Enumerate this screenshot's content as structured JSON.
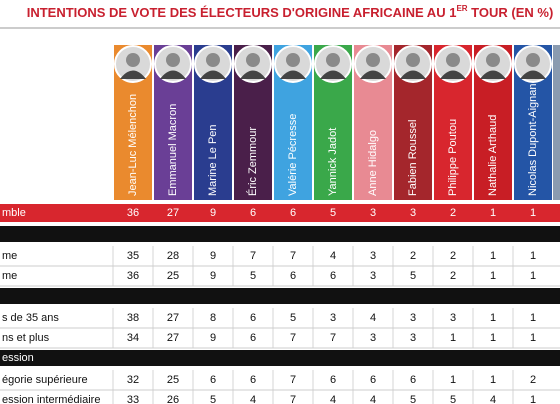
{
  "header": {
    "title_main": "INTENTIONS DE VOTE DES ÉLECTEURS D'ORIGINE AFRICAINE AU 1",
    "title_sup": "ER",
    "title_end": " TOUR (EN %)"
  },
  "candidates": [
    {
      "name": "Jean-Luc Mélenchon",
      "color": "#ea8a2e"
    },
    {
      "name": "Emmanuel Macron",
      "color": "#6a3f96"
    },
    {
      "name": "Marine Le Pen",
      "color": "#2a3d8f"
    },
    {
      "name": "Éric Zemmour",
      "color": "#4a1f4a"
    },
    {
      "name": "Valérie Pécresse",
      "color": "#3fa3e0"
    },
    {
      "name": "Yannick Jadot",
      "color": "#3aa84a"
    },
    {
      "name": "Anne Hidalgo",
      "color": "#e88a93"
    },
    {
      "name": "Fabien Roussel",
      "color": "#a4262c"
    },
    {
      "name": "Philippe Poutou",
      "color": "#d8262e"
    },
    {
      "name": "Nathalie Arthaud",
      "color": "#c81e25"
    },
    {
      "name": "Nicolas Dupont-Aignan",
      "color": "#2455a6"
    }
  ],
  "rows": [
    {
      "label": "mble",
      "values": [
        36,
        27,
        9,
        6,
        6,
        5,
        3,
        3,
        2,
        1,
        1
      ],
      "highlight": true
    },
    {
      "section": null
    },
    {
      "label": "me",
      "values": [
        35,
        28,
        9,
        7,
        7,
        4,
        3,
        2,
        2,
        1,
        1
      ]
    },
    {
      "label": "me",
      "values": [
        36,
        25,
        9,
        5,
        6,
        6,
        3,
        5,
        2,
        1,
        1
      ]
    },
    {
      "section": null
    },
    {
      "label": "s de 35 ans",
      "values": [
        38,
        27,
        8,
        6,
        5,
        3,
        4,
        3,
        3,
        1,
        1
      ]
    },
    {
      "label": "ns et plus",
      "values": [
        34,
        27,
        9,
        6,
        7,
        7,
        3,
        3,
        1,
        1,
        1
      ]
    },
    {
      "section": "ession"
    },
    {
      "label": "égorie supérieure",
      "values": [
        32,
        25,
        6,
        6,
        7,
        6,
        6,
        6,
        1,
        1,
        2
      ]
    },
    {
      "label": "ession intermédiaire",
      "values": [
        33,
        26,
        5,
        4,
        7,
        4,
        4,
        5,
        5,
        4,
        1
      ]
    }
  ]
}
